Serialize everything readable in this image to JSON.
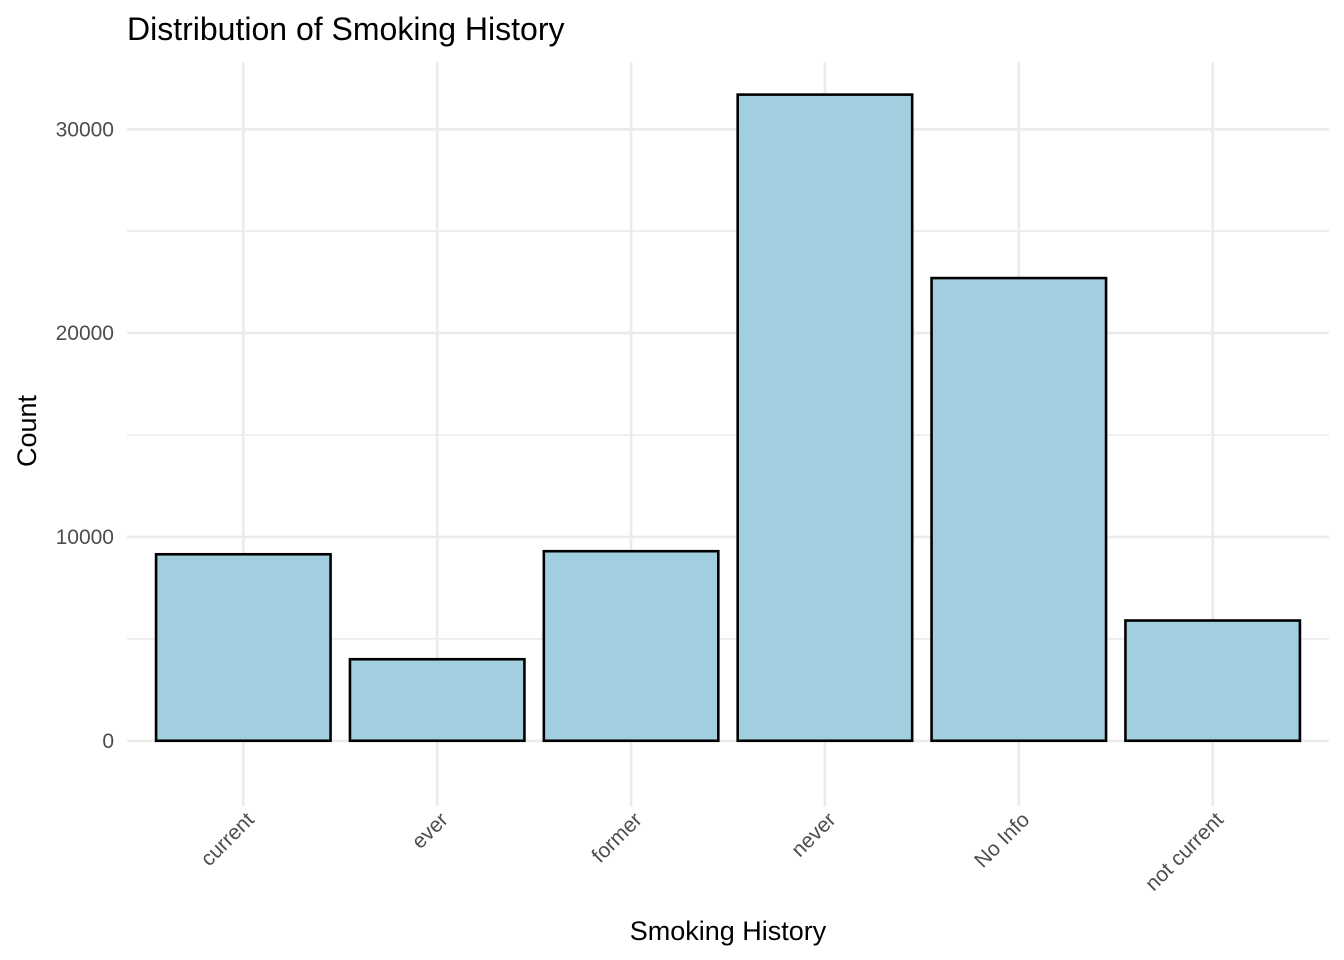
{
  "chart_data": {
    "type": "bar",
    "title": "Distribution of Smoking History",
    "xlabel": "Smoking History",
    "ylabel": "Count",
    "categories": [
      "current",
      "ever",
      "former",
      "never",
      "No Info",
      "not current"
    ],
    "values": [
      9150,
      4000,
      9300,
      31700,
      22700,
      5900
    ],
    "ylim": [
      -3200,
      33300
    ],
    "yticks": [
      0,
      10000,
      20000,
      30000
    ],
    "ytick_labels": [
      "0",
      "10000",
      "20000",
      "30000"
    ],
    "y_minor_ticks": [
      5000,
      15000,
      25000
    ],
    "grid": true,
    "legend": "none",
    "bar_fill": "#a1cfdf",
    "bar_outline": "#000000"
  }
}
